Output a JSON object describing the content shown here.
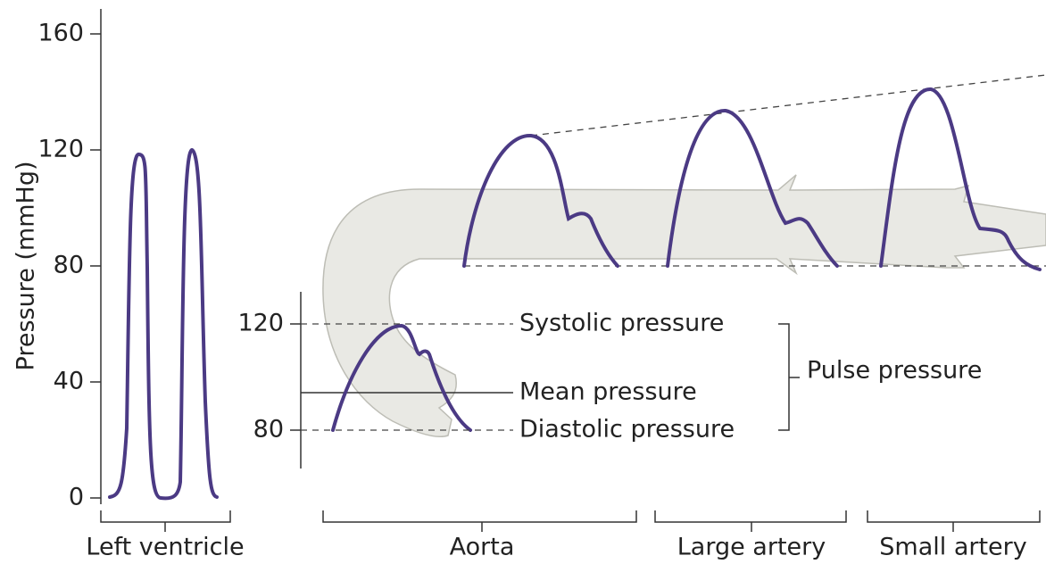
{
  "axis": {
    "label": "Pressure (mmHg)",
    "ticks": [
      0,
      40,
      80,
      120,
      160
    ]
  },
  "inset": {
    "ticks": [
      120,
      80
    ],
    "systolic": "Systolic pressure",
    "mean": "Mean pressure",
    "diastolic": "Diastolic pressure",
    "pulse": "Pulse pressure"
  },
  "regions": [
    "Left ventricle",
    "Aorta",
    "Large artery",
    "Small artery"
  ]
}
